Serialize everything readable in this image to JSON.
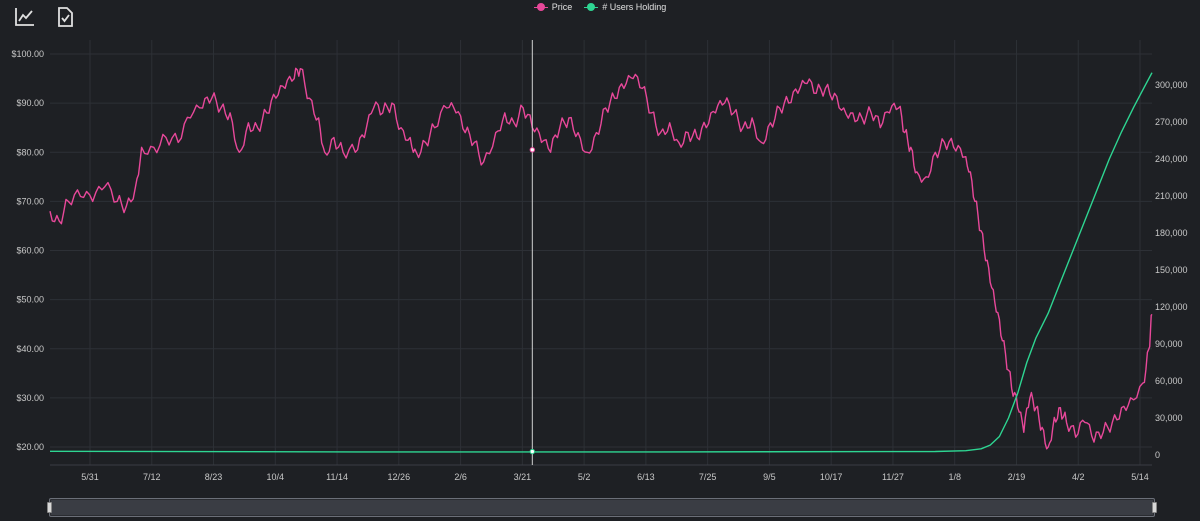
{
  "toolbar": {
    "icons": [
      "line-chart-icon",
      "document-check-icon"
    ]
  },
  "chart_data": {
    "type": "line",
    "x_tick_labels": [
      "5/31",
      "7/12",
      "8/23",
      "10/4",
      "11/14",
      "12/26",
      "2/6",
      "3/21",
      "5/2",
      "6/13",
      "7/25",
      "9/5",
      "10/17",
      "11/27",
      "1/8",
      "2/19",
      "4/2",
      "5/14"
    ],
    "y_left": {
      "ticks": [
        "$20.00",
        "$30.00",
        "$40.00",
        "$50.00",
        "$60.00",
        "$70.00",
        "$80.00",
        "$90.00",
        "$100.00"
      ],
      "range": [
        20,
        100
      ]
    },
    "y_right": {
      "ticks": [
        "0",
        "30,000",
        "60,000",
        "90,000",
        "120,000",
        "150,000",
        "180,000",
        "210,000",
        "240,000",
        "270,000",
        "300,000"
      ],
      "range": [
        0,
        300000
      ]
    },
    "grid": true,
    "legend_position": "top-center",
    "series": [
      {
        "name": "Price",
        "axis": "left",
        "color": "#e8489a",
        "points": [
          [
            0,
            68
          ],
          [
            0.3,
            66
          ],
          [
            0.6,
            70
          ],
          [
            1,
            71
          ],
          [
            1.4,
            70
          ],
          [
            1.8,
            73
          ],
          [
            2.2,
            70
          ],
          [
            2.5,
            69
          ],
          [
            2.8,
            73
          ],
          [
            3.0,
            81
          ],
          [
            3.4,
            81
          ],
          [
            3.8,
            83
          ],
          [
            4.2,
            82
          ],
          [
            4.6,
            87
          ],
          [
            5.0,
            89
          ],
          [
            5.3,
            91
          ],
          [
            5.6,
            89
          ],
          [
            5.9,
            88
          ],
          [
            6.2,
            80
          ],
          [
            6.5,
            86
          ],
          [
            6.8,
            85
          ],
          [
            7.1,
            88
          ],
          [
            7.4,
            91
          ],
          [
            7.7,
            93
          ],
          [
            8.0,
            95
          ],
          [
            8.2,
            97
          ],
          [
            8.5,
            91
          ],
          [
            8.8,
            87
          ],
          [
            9.0,
            80
          ],
          [
            9.3,
            83
          ],
          [
            9.6,
            80
          ],
          [
            10.0,
            80
          ],
          [
            10.3,
            83
          ],
          [
            10.6,
            89
          ],
          [
            10.9,
            88
          ],
          [
            11.2,
            90
          ],
          [
            11.5,
            85
          ],
          [
            11.8,
            83
          ],
          [
            12.0,
            80
          ],
          [
            12.3,
            82
          ],
          [
            12.6,
            85
          ],
          [
            13.0,
            89
          ],
          [
            13.3,
            88
          ],
          [
            13.6,
            84
          ],
          [
            13.9,
            82
          ],
          [
            14.2,
            78
          ],
          [
            14.6,
            84
          ],
          [
            14.9,
            88
          ],
          [
            15.2,
            86
          ],
          [
            15.5,
            89
          ],
          [
            15.8,
            85
          ],
          [
            16.1,
            82
          ],
          [
            16.4,
            80
          ],
          [
            16.7,
            85
          ],
          [
            17.0,
            87
          ],
          [
            17.3,
            84
          ],
          [
            17.6,
            80
          ],
          [
            17.9,
            84
          ],
          [
            18.2,
            89
          ],
          [
            18.5,
            91
          ],
          [
            18.8,
            93
          ],
          [
            19.1,
            95
          ],
          [
            19.4,
            93
          ],
          [
            19.7,
            88
          ],
          [
            20.0,
            84
          ],
          [
            20.3,
            86
          ],
          [
            20.6,
            82
          ],
          [
            20.9,
            84
          ],
          [
            21.2,
            83
          ],
          [
            21.5,
            85
          ],
          [
            21.8,
            88
          ],
          [
            22.1,
            90
          ],
          [
            22.4,
            88
          ],
          [
            22.7,
            85
          ],
          [
            23.0,
            87
          ],
          [
            23.3,
            82
          ],
          [
            23.6,
            86
          ],
          [
            23.9,
            89
          ],
          [
            24.2,
            90
          ],
          [
            24.5,
            92
          ],
          [
            24.8,
            94
          ],
          [
            25.1,
            92
          ],
          [
            25.4,
            93
          ],
          [
            25.7,
            92
          ],
          [
            26.0,
            89
          ],
          [
            26.3,
            88
          ],
          [
            26.6,
            87
          ],
          [
            26.9,
            88
          ],
          [
            27.2,
            85
          ],
          [
            27.5,
            88
          ],
          [
            27.8,
            89
          ],
          [
            28.0,
            84
          ],
          [
            28.2,
            81
          ],
          [
            28.4,
            76
          ],
          [
            28.7,
            75
          ],
          [
            29.0,
            80
          ],
          [
            29.3,
            82
          ],
          [
            29.6,
            81
          ],
          [
            29.9,
            79
          ],
          [
            30.1,
            76
          ],
          [
            30.3,
            70
          ],
          [
            30.5,
            64
          ],
          [
            30.7,
            58
          ],
          [
            30.9,
            52
          ],
          [
            31.1,
            46
          ],
          [
            31.3,
            39
          ],
          [
            31.5,
            32
          ],
          [
            31.7,
            28
          ],
          [
            31.9,
            23
          ],
          [
            32.1,
            30
          ],
          [
            32.3,
            28
          ],
          [
            32.5,
            24
          ],
          [
            32.7,
            20
          ],
          [
            32.9,
            26
          ],
          [
            33.1,
            28
          ],
          [
            33.3,
            25
          ],
          [
            33.6,
            22
          ],
          [
            33.9,
            25
          ],
          [
            34.2,
            21
          ],
          [
            34.5,
            23
          ],
          [
            34.8,
            25
          ],
          [
            35.1,
            28
          ],
          [
            35.4,
            30
          ],
          [
            35.8,
            33
          ],
          [
            36.0,
            40
          ],
          [
            36.1,
            47
          ]
        ]
      },
      {
        "name": "# Users Holding",
        "axis": "right",
        "color": "#2ed592",
        "points": [
          [
            0,
            3000
          ],
          [
            10,
            2500
          ],
          [
            20,
            2500
          ],
          [
            29,
            2800
          ],
          [
            30,
            3500
          ],
          [
            30.5,
            5000
          ],
          [
            30.8,
            8000
          ],
          [
            31.1,
            15000
          ],
          [
            31.4,
            30000
          ],
          [
            31.7,
            50000
          ],
          [
            32.0,
            75000
          ],
          [
            32.3,
            95000
          ],
          [
            32.7,
            115000
          ],
          [
            33.1,
            140000
          ],
          [
            33.5,
            165000
          ],
          [
            33.9,
            190000
          ],
          [
            34.3,
            215000
          ],
          [
            34.7,
            240000
          ],
          [
            35.1,
            262000
          ],
          [
            35.5,
            282000
          ],
          [
            35.8,
            296000
          ],
          [
            36.1,
            310000
          ]
        ]
      }
    ],
    "crosshair": {
      "x": 15.8
    }
  }
}
